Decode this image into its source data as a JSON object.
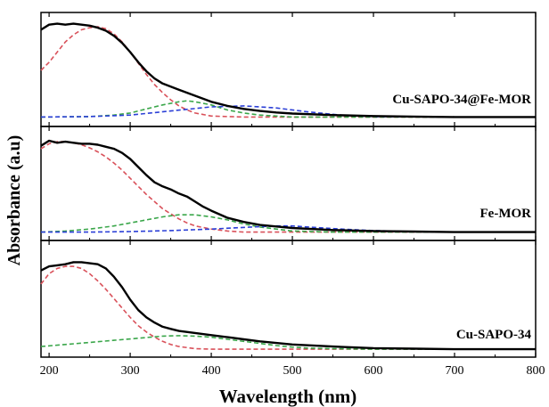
{
  "chart_data": {
    "type": "line",
    "xlabel": "Wavelength (nm)",
    "ylabel": "Absorbance (a.u)",
    "xlim": [
      190,
      800
    ],
    "x_ticks": [
      200,
      300,
      400,
      500,
      600,
      700,
      800
    ],
    "colors": {
      "measured": "#000000",
      "band_uv": "#d9515a",
      "band_mid": "#3aa64a",
      "band_vis": "#2b3fd6"
    },
    "panels": [
      {
        "label": "Cu-SAPO-34@Fe-MOR",
        "ylim": [
          0,
          1.0
        ],
        "series": [
          {
            "role": "measured",
            "style": "solid",
            "x": [
              190,
              200,
              210,
              220,
              230,
              240,
              250,
              260,
              270,
              280,
              290,
              300,
              310,
              320,
              330,
              340,
              350,
              360,
              370,
              380,
              390,
              400,
              420,
              440,
              460,
              480,
              500,
              550,
              600,
              650,
              700,
              750,
              800
            ],
            "y": [
              0.9,
              0.95,
              0.96,
              0.95,
              0.96,
              0.95,
              0.94,
              0.92,
              0.89,
              0.84,
              0.77,
              0.68,
              0.58,
              0.49,
              0.42,
              0.37,
              0.34,
              0.31,
              0.28,
              0.25,
              0.22,
              0.19,
              0.15,
              0.12,
              0.1,
              0.085,
              0.075,
              0.06,
              0.05,
              0.045,
              0.04,
              0.04,
              0.04
            ]
          },
          {
            "role": "band_uv",
            "style": "dashed",
            "x": [
              190,
              200,
              210,
              220,
              230,
              240,
              250,
              260,
              270,
              280,
              290,
              300,
              310,
              320,
              330,
              340,
              350,
              360,
              370,
              380,
              400,
              420,
              440,
              460,
              480,
              500,
              550,
              600,
              700,
              800
            ],
            "y": [
              0.5,
              0.58,
              0.68,
              0.78,
              0.85,
              0.9,
              0.92,
              0.93,
              0.91,
              0.86,
              0.78,
              0.68,
              0.57,
              0.46,
              0.36,
              0.28,
              0.21,
              0.15,
              0.11,
              0.08,
              0.05,
              0.045,
              0.04,
              0.04,
              0.04,
              0.04,
              0.04,
              0.04,
              0.04,
              0.04
            ]
          },
          {
            "role": "band_mid",
            "style": "dashed",
            "x": [
              190,
              250,
              280,
              300,
              320,
              340,
              360,
              370,
              380,
              400,
              420,
              440,
              460,
              480,
              500,
              550,
              600,
              700,
              800
            ],
            "y": [
              0.04,
              0.045,
              0.06,
              0.08,
              0.12,
              0.16,
              0.19,
              0.2,
              0.19,
              0.16,
              0.11,
              0.08,
              0.06,
              0.05,
              0.04,
              0.04,
              0.04,
              0.04,
              0.04
            ]
          },
          {
            "role": "band_vis",
            "style": "dashed",
            "x": [
              190,
              250,
              300,
              350,
              400,
              440,
              480,
              520,
              560,
              600,
              700,
              800
            ],
            "y": [
              0.04,
              0.045,
              0.06,
              0.1,
              0.14,
              0.15,
              0.13,
              0.09,
              0.06,
              0.045,
              0.04,
              0.04
            ]
          }
        ]
      },
      {
        "label": "Fe-MOR",
        "ylim": [
          0,
          1.0
        ],
        "series": [
          {
            "role": "measured",
            "style": "solid",
            "x": [
              190,
              200,
              210,
              220,
              230,
              240,
              250,
              260,
              270,
              280,
              290,
              300,
              310,
              320,
              330,
              340,
              350,
              360,
              370,
              380,
              390,
              400,
              420,
              440,
              460,
              480,
              500,
              550,
              600,
              650,
              700,
              750,
              800
            ],
            "y": [
              0.88,
              0.93,
              0.91,
              0.92,
              0.91,
              0.9,
              0.9,
              0.89,
              0.87,
              0.85,
              0.81,
              0.75,
              0.67,
              0.59,
              0.52,
              0.48,
              0.45,
              0.41,
              0.38,
              0.33,
              0.28,
              0.24,
              0.17,
              0.13,
              0.1,
              0.085,
              0.07,
              0.05,
              0.04,
              0.035,
              0.03,
              0.03,
              0.03
            ]
          },
          {
            "role": "band_uv",
            "style": "dashed",
            "x": [
              190,
              200,
              210,
              220,
              230,
              240,
              250,
              260,
              270,
              280,
              290,
              300,
              310,
              320,
              330,
              340,
              350,
              360,
              370,
              380,
              400,
              420,
              440,
              460,
              480,
              500,
              550,
              600,
              700,
              800
            ],
            "y": [
              0.85,
              0.9,
              0.92,
              0.92,
              0.91,
              0.89,
              0.86,
              0.82,
              0.77,
              0.71,
              0.64,
              0.56,
              0.48,
              0.4,
              0.33,
              0.26,
              0.21,
              0.16,
              0.12,
              0.09,
              0.06,
              0.04,
              0.03,
              0.03,
              0.03,
              0.03,
              0.03,
              0.03,
              0.03,
              0.03
            ]
          },
          {
            "role": "band_mid",
            "style": "dashed",
            "x": [
              190,
              220,
              250,
              280,
              300,
              320,
              340,
              360,
              380,
              400,
              420,
              440,
              460,
              480,
              500,
              550,
              600,
              700,
              800
            ],
            "y": [
              0.03,
              0.04,
              0.06,
              0.09,
              0.12,
              0.15,
              0.18,
              0.2,
              0.2,
              0.18,
              0.15,
              0.11,
              0.08,
              0.06,
              0.04,
              0.03,
              0.03,
              0.03,
              0.03
            ]
          },
          {
            "role": "band_vis",
            "style": "dashed",
            "x": [
              190,
              250,
              300,
              350,
              400,
              450,
              480,
              500,
              520,
              560,
              600,
              650,
              700,
              800
            ],
            "y": [
              0.03,
              0.03,
              0.035,
              0.045,
              0.06,
              0.08,
              0.09,
              0.09,
              0.08,
              0.06,
              0.045,
              0.035,
              0.03,
              0.03
            ]
          }
        ]
      },
      {
        "label": "Cu-SAPO-34",
        "ylim": [
          0,
          1.0
        ],
        "series": [
          {
            "role": "measured",
            "style": "solid",
            "x": [
              190,
              200,
              210,
              220,
              230,
              240,
              250,
              260,
              270,
              280,
              290,
              300,
              310,
              320,
              330,
              340,
              350,
              360,
              380,
              400,
              420,
              440,
              460,
              480,
              500,
              550,
              600,
              650,
              700,
              750,
              800
            ],
            "y": [
              0.78,
              0.82,
              0.83,
              0.84,
              0.86,
              0.86,
              0.85,
              0.84,
              0.8,
              0.72,
              0.62,
              0.5,
              0.4,
              0.33,
              0.28,
              0.24,
              0.22,
              0.2,
              0.18,
              0.16,
              0.14,
              0.12,
              0.1,
              0.085,
              0.07,
              0.05,
              0.035,
              0.03,
              0.025,
              0.025,
              0.025
            ]
          },
          {
            "role": "band_uv",
            "style": "dashed",
            "x": [
              190,
              200,
              210,
              220,
              230,
              240,
              250,
              260,
              270,
              280,
              290,
              300,
              310,
              320,
              330,
              340,
              350,
              360,
              380,
              400,
              420,
              440,
              460,
              480,
              500,
              550,
              600,
              700,
              800
            ],
            "y": [
              0.65,
              0.75,
              0.8,
              0.82,
              0.82,
              0.8,
              0.75,
              0.68,
              0.6,
              0.51,
              0.42,
              0.33,
              0.25,
              0.19,
              0.14,
              0.1,
              0.07,
              0.05,
              0.03,
              0.025,
              0.025,
              0.025,
              0.025,
              0.025,
              0.025,
              0.025,
              0.025,
              0.025,
              0.025
            ]
          },
          {
            "role": "band_mid",
            "style": "dashed",
            "x": [
              190,
              220,
              250,
              280,
              310,
              340,
              360,
              380,
              400,
              420,
              440,
              460,
              480,
              500,
              520,
              550,
              600,
              700,
              800
            ],
            "y": [
              0.05,
              0.07,
              0.09,
              0.11,
              0.13,
              0.15,
              0.155,
              0.15,
              0.14,
              0.12,
              0.1,
              0.08,
              0.06,
              0.045,
              0.035,
              0.03,
              0.025,
              0.025,
              0.025
            ]
          }
        ]
      }
    ]
  }
}
